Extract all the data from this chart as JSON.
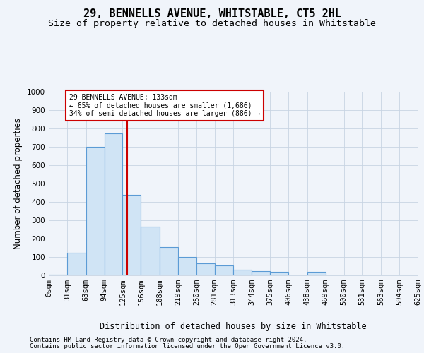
{
  "title": "29, BENNELLS AVENUE, WHITSTABLE, CT5 2HL",
  "subtitle": "Size of property relative to detached houses in Whitstable",
  "xlabel": "Distribution of detached houses by size in Whitstable",
  "ylabel": "Number of detached properties",
  "footer_line1": "Contains HM Land Registry data © Crown copyright and database right 2024.",
  "footer_line2": "Contains public sector information licensed under the Open Government Licence v3.0.",
  "bins": [
    0,
    31,
    63,
    94,
    125,
    156,
    188,
    219,
    250,
    281,
    313,
    344,
    375,
    406,
    438,
    469,
    500,
    531,
    563,
    594,
    625
  ],
  "bar_heights": [
    5,
    125,
    700,
    775,
    440,
    265,
    155,
    100,
    65,
    55,
    30,
    25,
    20,
    0,
    20,
    0,
    0,
    0,
    0,
    0
  ],
  "bar_color": "#d0e4f5",
  "bar_edge_color": "#5b9bd5",
  "property_size": 133,
  "vline_color": "#cc0000",
  "annotation_text": "29 BENNELLS AVENUE: 133sqm\n← 65% of detached houses are smaller (1,686)\n34% of semi-detached houses are larger (886) →",
  "annotation_box_color": "#ffffff",
  "annotation_box_edge_color": "#cc0000",
  "ylim": [
    0,
    1000
  ],
  "yticks": [
    0,
    100,
    200,
    300,
    400,
    500,
    600,
    700,
    800,
    900,
    1000
  ],
  "grid_color": "#c8d4e3",
  "bg_color": "#f0f4fa",
  "title_fontsize": 11,
  "subtitle_fontsize": 9.5,
  "axis_label_fontsize": 8.5,
  "tick_fontsize": 7.5,
  "footer_fontsize": 6.5
}
